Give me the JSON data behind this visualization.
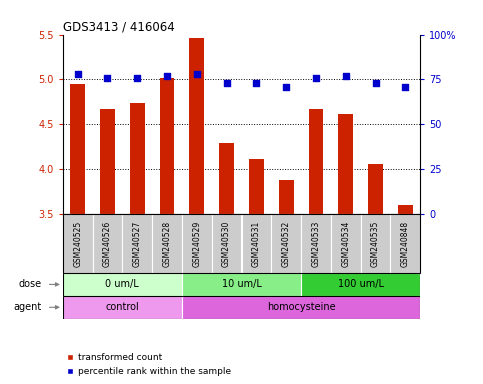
{
  "title": "GDS3413 / 416064",
  "samples": [
    "GSM240525",
    "GSM240526",
    "GSM240527",
    "GSM240528",
    "GSM240529",
    "GSM240530",
    "GSM240531",
    "GSM240532",
    "GSM240533",
    "GSM240534",
    "GSM240535",
    "GSM240848"
  ],
  "bar_values": [
    4.95,
    4.67,
    4.74,
    5.02,
    5.46,
    4.29,
    4.12,
    3.88,
    4.67,
    4.62,
    4.06,
    3.6
  ],
  "dot_values": [
    78,
    76,
    76,
    77,
    78,
    73,
    73,
    71,
    76,
    77,
    73,
    71
  ],
  "bar_color": "#cc2200",
  "dot_color": "#0000cc",
  "ylim_left": [
    3.5,
    5.5
  ],
  "ylim_right": [
    0,
    100
  ],
  "yticks_left": [
    3.5,
    4.0,
    4.5,
    5.0,
    5.5
  ],
  "yticks_right": [
    0,
    25,
    50,
    75,
    100
  ],
  "ytick_right_labels": [
    "0",
    "25",
    "50",
    "75",
    "100%"
  ],
  "gridlines": [
    4.0,
    4.5,
    5.0
  ],
  "dose_groups": [
    {
      "label": "0 um/L",
      "start": 0,
      "end": 4,
      "color": "#ccffcc"
    },
    {
      "label": "10 um/L",
      "start": 4,
      "end": 8,
      "color": "#88ee88"
    },
    {
      "label": "100 um/L",
      "start": 8,
      "end": 12,
      "color": "#33cc33"
    }
  ],
  "agent_groups": [
    {
      "label": "control",
      "start": 0,
      "end": 4,
      "color": "#ee99ee"
    },
    {
      "label": "homocysteine",
      "start": 4,
      "end": 12,
      "color": "#dd66dd"
    }
  ],
  "dose_label": "dose",
  "agent_label": "agent",
  "legend_bar": "transformed count",
  "legend_dot": "percentile rank within the sample",
  "tick_color_left": "#cc2200",
  "tick_color_right": "#0000cc",
  "sample_box_color": "#cccccc",
  "bg_color": "#ffffff",
  "bar_width": 0.5
}
